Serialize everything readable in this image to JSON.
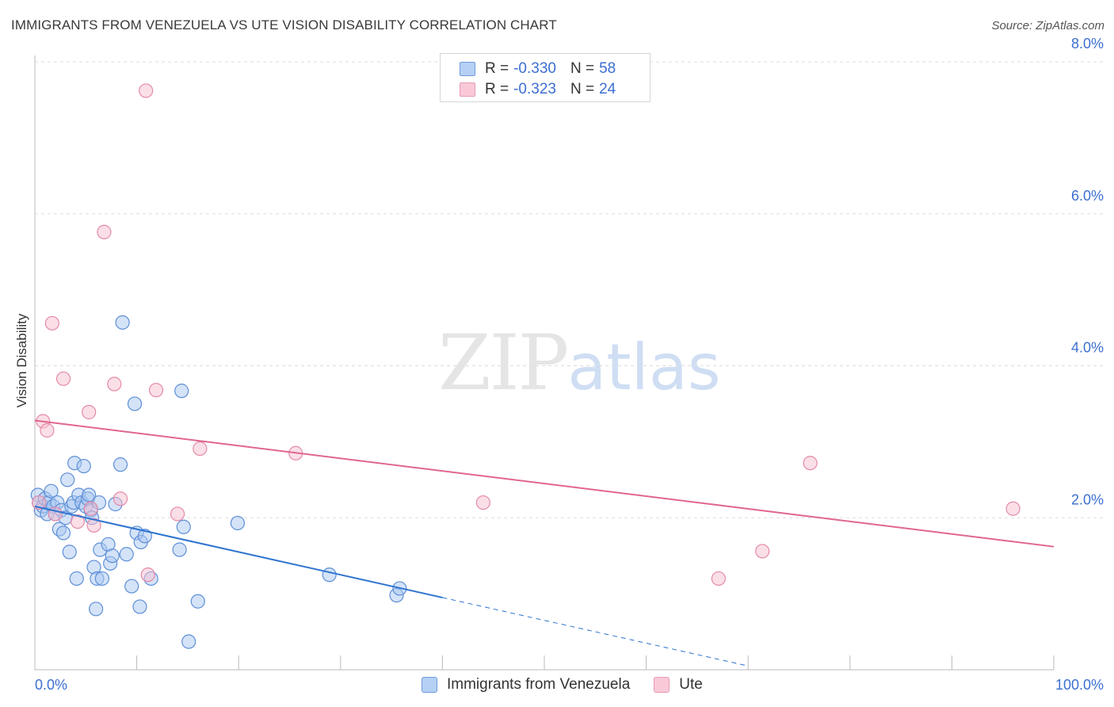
{
  "header": {
    "title": "IMMIGRANTS FROM VENEZUELA VS UTE VISION DISABILITY CORRELATION CHART",
    "source": "Source: ZipAtlas.com"
  },
  "legend": {
    "rows": [
      {
        "r_label": "R =",
        "r_value": "-0.330",
        "n_label": "N =",
        "n_value": "58"
      },
      {
        "r_label": "R =",
        "r_value": "-0.323",
        "n_label": "N =",
        "n_value": "24"
      }
    ]
  },
  "watermark": {
    "zip": "ZIP",
    "atlas": "atlas"
  },
  "chart_data": {
    "type": "scatter",
    "title": "IMMIGRANTS FROM VENEZUELA VS UTE VISION DISABILITY CORRELATION CHART",
    "xlabel": "",
    "ylabel": "Vision Disability",
    "xlim": [
      0,
      100
    ],
    "ylim": [
      0,
      8
    ],
    "x_tick_labels": [
      "0.0%",
      "100.0%"
    ],
    "y_ticks": [
      2,
      4,
      6,
      8
    ],
    "y_tick_labels": [
      "2.0%",
      "4.0%",
      "6.0%",
      "8.0%"
    ],
    "colors": {
      "blue_fill": "#a9c8f2",
      "blue_edge": "#5e8fd6",
      "blue_line": "#2f74d0",
      "pink_fill": "#f7bfd0",
      "pink_edge": "#e48aa8",
      "pink_line": "#e0668f",
      "tick_text": "#3c6fd0",
      "grid": "#dddddd"
    },
    "series": [
      {
        "name": "Immigrants from Venezuela",
        "points": [
          [
            0.3,
            2.3
          ],
          [
            0.4,
            2.2
          ],
          [
            0.6,
            2.1
          ],
          [
            0.8,
            2.15
          ],
          [
            1.0,
            2.25
          ],
          [
            1.2,
            2.05
          ],
          [
            1.4,
            2.2
          ],
          [
            1.6,
            2.35
          ],
          [
            1.8,
            2.15
          ],
          [
            2.0,
            2.05
          ],
          [
            2.2,
            2.2
          ],
          [
            2.4,
            1.85
          ],
          [
            2.6,
            2.1
          ],
          [
            2.8,
            1.8
          ],
          [
            3.0,
            2.0
          ],
          [
            3.2,
            2.5
          ],
          [
            3.4,
            1.55
          ],
          [
            3.6,
            2.15
          ],
          [
            3.8,
            2.2
          ],
          [
            3.9,
            2.72
          ],
          [
            4.1,
            1.2
          ],
          [
            4.3,
            2.3
          ],
          [
            4.6,
            2.2
          ],
          [
            4.8,
            2.68
          ],
          [
            5.0,
            2.15
          ],
          [
            5.2,
            2.25
          ],
          [
            5.3,
            2.3
          ],
          [
            5.5,
            2.1
          ],
          [
            5.6,
            2.0
          ],
          [
            5.8,
            1.35
          ],
          [
            6.0,
            0.8
          ],
          [
            6.1,
            1.2
          ],
          [
            6.3,
            2.2
          ],
          [
            6.4,
            1.58
          ],
          [
            6.6,
            1.2
          ],
          [
            7.2,
            1.65
          ],
          [
            7.4,
            1.4
          ],
          [
            7.6,
            1.5
          ],
          [
            7.9,
            2.18
          ],
          [
            8.4,
            2.7
          ],
          [
            8.6,
            4.57
          ],
          [
            9.0,
            1.52
          ],
          [
            9.5,
            1.1
          ],
          [
            9.8,
            3.5
          ],
          [
            10.0,
            1.8
          ],
          [
            10.3,
            0.83
          ],
          [
            10.4,
            1.68
          ],
          [
            10.8,
            1.76
          ],
          [
            11.4,
            1.2
          ],
          [
            14.2,
            1.58
          ],
          [
            14.4,
            3.67
          ],
          [
            14.6,
            1.88
          ],
          [
            15.1,
            0.37
          ],
          [
            16.0,
            0.9
          ],
          [
            19.9,
            1.93
          ],
          [
            28.9,
            1.25
          ],
          [
            35.5,
            0.98
          ],
          [
            35.8,
            1.07
          ]
        ],
        "trend": {
          "x0": 0,
          "y0": 2.15,
          "x1": 40,
          "y1": 0.95,
          "dash_to_x": 70,
          "dash_to_y": 0.05
        }
      },
      {
        "name": "Ute",
        "points": [
          [
            0.4,
            2.2
          ],
          [
            0.8,
            3.27
          ],
          [
            1.2,
            3.15
          ],
          [
            1.7,
            4.56
          ],
          [
            2.0,
            2.05
          ],
          [
            2.8,
            3.83
          ],
          [
            4.2,
            1.95
          ],
          [
            5.3,
            3.39
          ],
          [
            5.5,
            2.12
          ],
          [
            5.8,
            1.9
          ],
          [
            6.8,
            5.76
          ],
          [
            7.8,
            3.76
          ],
          [
            8.4,
            2.25
          ],
          [
            10.9,
            7.62
          ],
          [
            11.1,
            1.25
          ],
          [
            11.9,
            3.68
          ],
          [
            14.0,
            2.05
          ],
          [
            16.2,
            2.91
          ],
          [
            25.6,
            2.85
          ],
          [
            44.0,
            2.2
          ],
          [
            67.1,
            1.2
          ],
          [
            71.4,
            1.56
          ],
          [
            76.1,
            2.72
          ],
          [
            96.0,
            2.12
          ]
        ],
        "trend": {
          "x0": 0,
          "y0": 3.28,
          "x1": 100,
          "y1": 1.62
        }
      }
    ],
    "legend_entries": [
      "Immigrants from Venezuela",
      "Ute"
    ],
    "grid": true,
    "legend_position": "top-center"
  }
}
